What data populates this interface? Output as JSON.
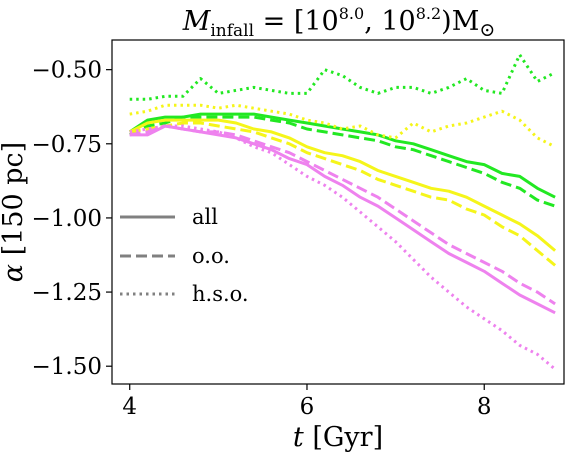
{
  "chart_data": {
    "type": "line",
    "title": {
      "base": "M",
      "sub": "infall",
      "p1": " = [10",
      "e1": "8.0",
      "p2": ", 10",
      "e2": "8.2",
      "p3": ")M",
      "sun": "⊙"
    },
    "xlabel": {
      "var": "t",
      "unit": " [Gyr]"
    },
    "ylabel": {
      "var": "α",
      "unit": " [150 pc]"
    },
    "xlim": [
      3.8,
      8.9
    ],
    "ylim": [
      -1.56,
      -0.4
    ],
    "x_ticks": [
      4,
      6,
      8
    ],
    "x_tick_labels": [
      "4",
      "6",
      "8"
    ],
    "y_ticks": [
      -0.5,
      -0.75,
      -1.0,
      -1.25,
      -1.5
    ],
    "y_tick_labels": [
      "−0.50",
      "−0.75",
      "−1.00",
      "−1.25",
      "−1.50"
    ],
    "grid": false,
    "legend_position": "center-left",
    "legend": [
      {
        "label": "all",
        "style": "solid"
      },
      {
        "label": "o.o.",
        "style": "dashed"
      },
      {
        "label": "h.s.o.",
        "style": "dotted"
      }
    ],
    "colors": {
      "green": "#22e822",
      "yellow": "#f5f51a",
      "violet": "#ee82ee",
      "legend_gray": "#808080"
    },
    "x": [
      4.0,
      4.2,
      4.4,
      4.6,
      4.8,
      5.0,
      5.2,
      5.4,
      5.6,
      5.8,
      6.0,
      6.2,
      6.4,
      6.6,
      6.8,
      7.0,
      7.2,
      7.4,
      7.6,
      7.8,
      8.0,
      8.2,
      8.4,
      8.6,
      8.8
    ],
    "series": [
      {
        "color": "green",
        "style": "solid",
        "values": [
          -0.71,
          -0.67,
          -0.66,
          -0.66,
          -0.65,
          -0.65,
          -0.65,
          -0.65,
          -0.66,
          -0.67,
          -0.68,
          -0.69,
          -0.7,
          -0.71,
          -0.72,
          -0.74,
          -0.75,
          -0.77,
          -0.79,
          -0.81,
          -0.82,
          -0.85,
          -0.86,
          -0.9,
          -0.93
        ]
      },
      {
        "color": "green",
        "style": "dashed",
        "values": [
          -0.72,
          -0.69,
          -0.68,
          -0.66,
          -0.66,
          -0.66,
          -0.66,
          -0.66,
          -0.67,
          -0.68,
          -0.7,
          -0.71,
          -0.72,
          -0.73,
          -0.74,
          -0.76,
          -0.77,
          -0.79,
          -0.81,
          -0.83,
          -0.85,
          -0.88,
          -0.9,
          -0.94,
          -0.96
        ]
      },
      {
        "color": "green",
        "style": "dotted",
        "values": [
          -0.6,
          -0.6,
          -0.59,
          -0.59,
          -0.53,
          -0.58,
          -0.57,
          -0.56,
          -0.57,
          -0.58,
          -0.58,
          -0.5,
          -0.52,
          -0.56,
          -0.58,
          -0.56,
          -0.56,
          -0.58,
          -0.56,
          -0.53,
          -0.57,
          -0.58,
          -0.45,
          -0.54,
          -0.51
        ]
      },
      {
        "color": "yellow",
        "style": "solid",
        "values": [
          -0.71,
          -0.68,
          -0.67,
          -0.67,
          -0.67,
          -0.67,
          -0.68,
          -0.7,
          -0.71,
          -0.73,
          -0.76,
          -0.78,
          -0.79,
          -0.81,
          -0.84,
          -0.86,
          -0.88,
          -0.9,
          -0.91,
          -0.93,
          -0.96,
          -0.99,
          -1.02,
          -1.06,
          -1.11
        ]
      },
      {
        "color": "yellow",
        "style": "dashed",
        "values": [
          -0.71,
          -0.7,
          -0.69,
          -0.68,
          -0.68,
          -0.69,
          -0.7,
          -0.71,
          -0.73,
          -0.75,
          -0.78,
          -0.8,
          -0.82,
          -0.84,
          -0.87,
          -0.89,
          -0.91,
          -0.93,
          -0.94,
          -0.97,
          -0.99,
          -1.03,
          -1.06,
          -1.11,
          -1.16
        ]
      },
      {
        "color": "yellow",
        "style": "dotted",
        "values": [
          -0.65,
          -0.64,
          -0.62,
          -0.62,
          -0.62,
          -0.63,
          -0.62,
          -0.63,
          -0.64,
          -0.65,
          -0.67,
          -0.68,
          -0.7,
          -0.69,
          -0.72,
          -0.73,
          -0.68,
          -0.71,
          -0.69,
          -0.68,
          -0.66,
          -0.64,
          -0.67,
          -0.73,
          -0.76
        ]
      },
      {
        "color": "violet",
        "style": "solid",
        "values": [
          -0.72,
          -0.72,
          -0.69,
          -0.7,
          -0.71,
          -0.72,
          -0.73,
          -0.75,
          -0.77,
          -0.8,
          -0.82,
          -0.86,
          -0.89,
          -0.93,
          -0.96,
          -1.0,
          -1.04,
          -1.08,
          -1.12,
          -1.15,
          -1.18,
          -1.22,
          -1.26,
          -1.29,
          -1.32
        ]
      },
      {
        "color": "violet",
        "style": "dashed",
        "values": [
          -0.72,
          -0.71,
          -0.69,
          -0.7,
          -0.71,
          -0.71,
          -0.72,
          -0.74,
          -0.76,
          -0.78,
          -0.81,
          -0.84,
          -0.87,
          -0.9,
          -0.93,
          -0.97,
          -1.01,
          -1.05,
          -1.09,
          -1.12,
          -1.15,
          -1.18,
          -1.22,
          -1.25,
          -1.29
        ]
      },
      {
        "color": "violet",
        "style": "dotted",
        "values": [
          -0.71,
          -0.7,
          -0.69,
          -0.69,
          -0.7,
          -0.71,
          -0.73,
          -0.76,
          -0.78,
          -0.82,
          -0.86,
          -0.89,
          -0.93,
          -0.98,
          -1.03,
          -1.08,
          -1.14,
          -1.2,
          -1.25,
          -1.3,
          -1.34,
          -1.38,
          -1.43,
          -1.46,
          -1.51
        ]
      }
    ]
  }
}
